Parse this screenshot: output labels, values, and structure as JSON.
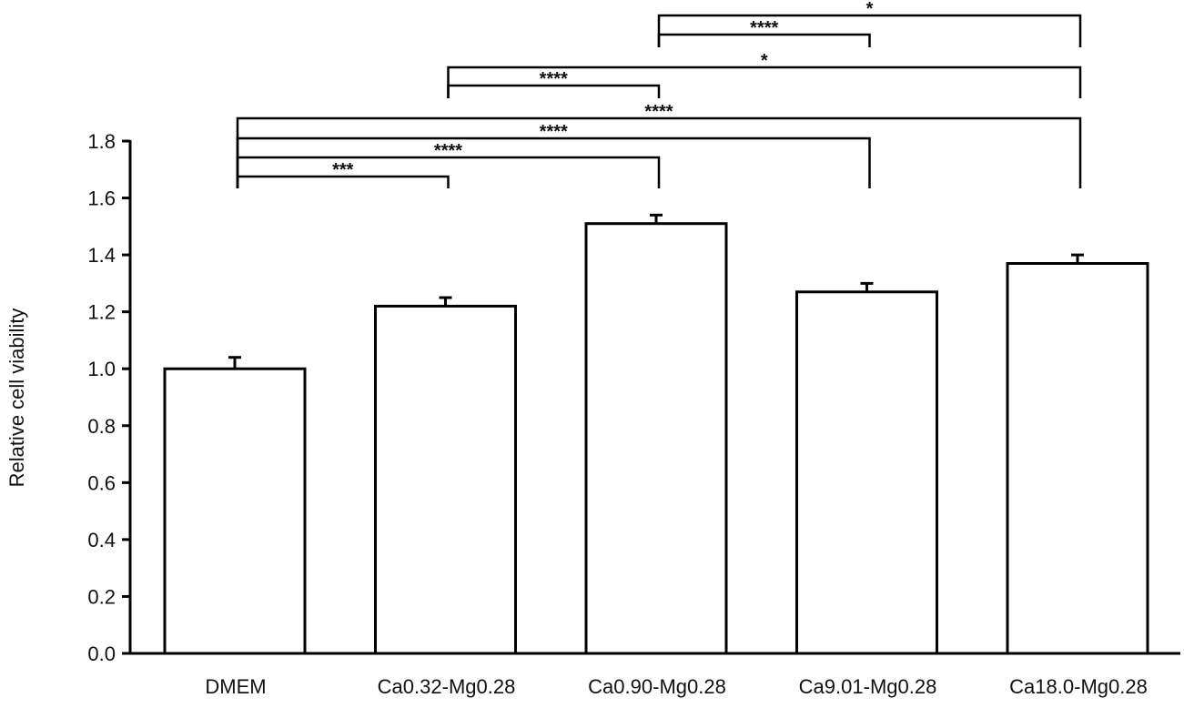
{
  "chart_data": {
    "type": "bar",
    "title": "",
    "xlabel": "",
    "ylabel": "Relative cell viability",
    "ylim": [
      0,
      1.8
    ],
    "yticks": [
      0.0,
      0.2,
      0.4,
      0.6,
      0.8,
      1.0,
      1.2,
      1.4,
      1.6,
      1.8
    ],
    "ytick_labels": [
      "0.0",
      "0.2",
      "0.4",
      "0.6",
      "0.8",
      "1.0",
      "1.2",
      "1.4",
      "1.6",
      "1.8"
    ],
    "grid": false,
    "legend": null,
    "categories": [
      "DMEM",
      "Ca0.32-Mg0.28",
      "Ca0.90-Mg0.28",
      "Ca9.01-Mg0.28",
      "Ca18.0-Mg0.28"
    ],
    "values": [
      1.0,
      1.22,
      1.51,
      1.27,
      1.37
    ],
    "errors": [
      0.04,
      0.03,
      0.03,
      0.03,
      0.03
    ],
    "bar_fill": "#ffffff",
    "bar_edge": "#000000",
    "significance": [
      {
        "from": 0,
        "to": 1,
        "label": "***"
      },
      {
        "from": 0,
        "to": 2,
        "label": "****"
      },
      {
        "from": 0,
        "to": 3,
        "label": "****"
      },
      {
        "from": 0,
        "to": 4,
        "label": "****"
      },
      {
        "from": 1,
        "to": 2,
        "label": "****"
      },
      {
        "from": 1,
        "to": 4,
        "label": "*"
      },
      {
        "from": 2,
        "to": 3,
        "label": "****"
      },
      {
        "from": 2,
        "to": 4,
        "label": "*"
      }
    ]
  }
}
